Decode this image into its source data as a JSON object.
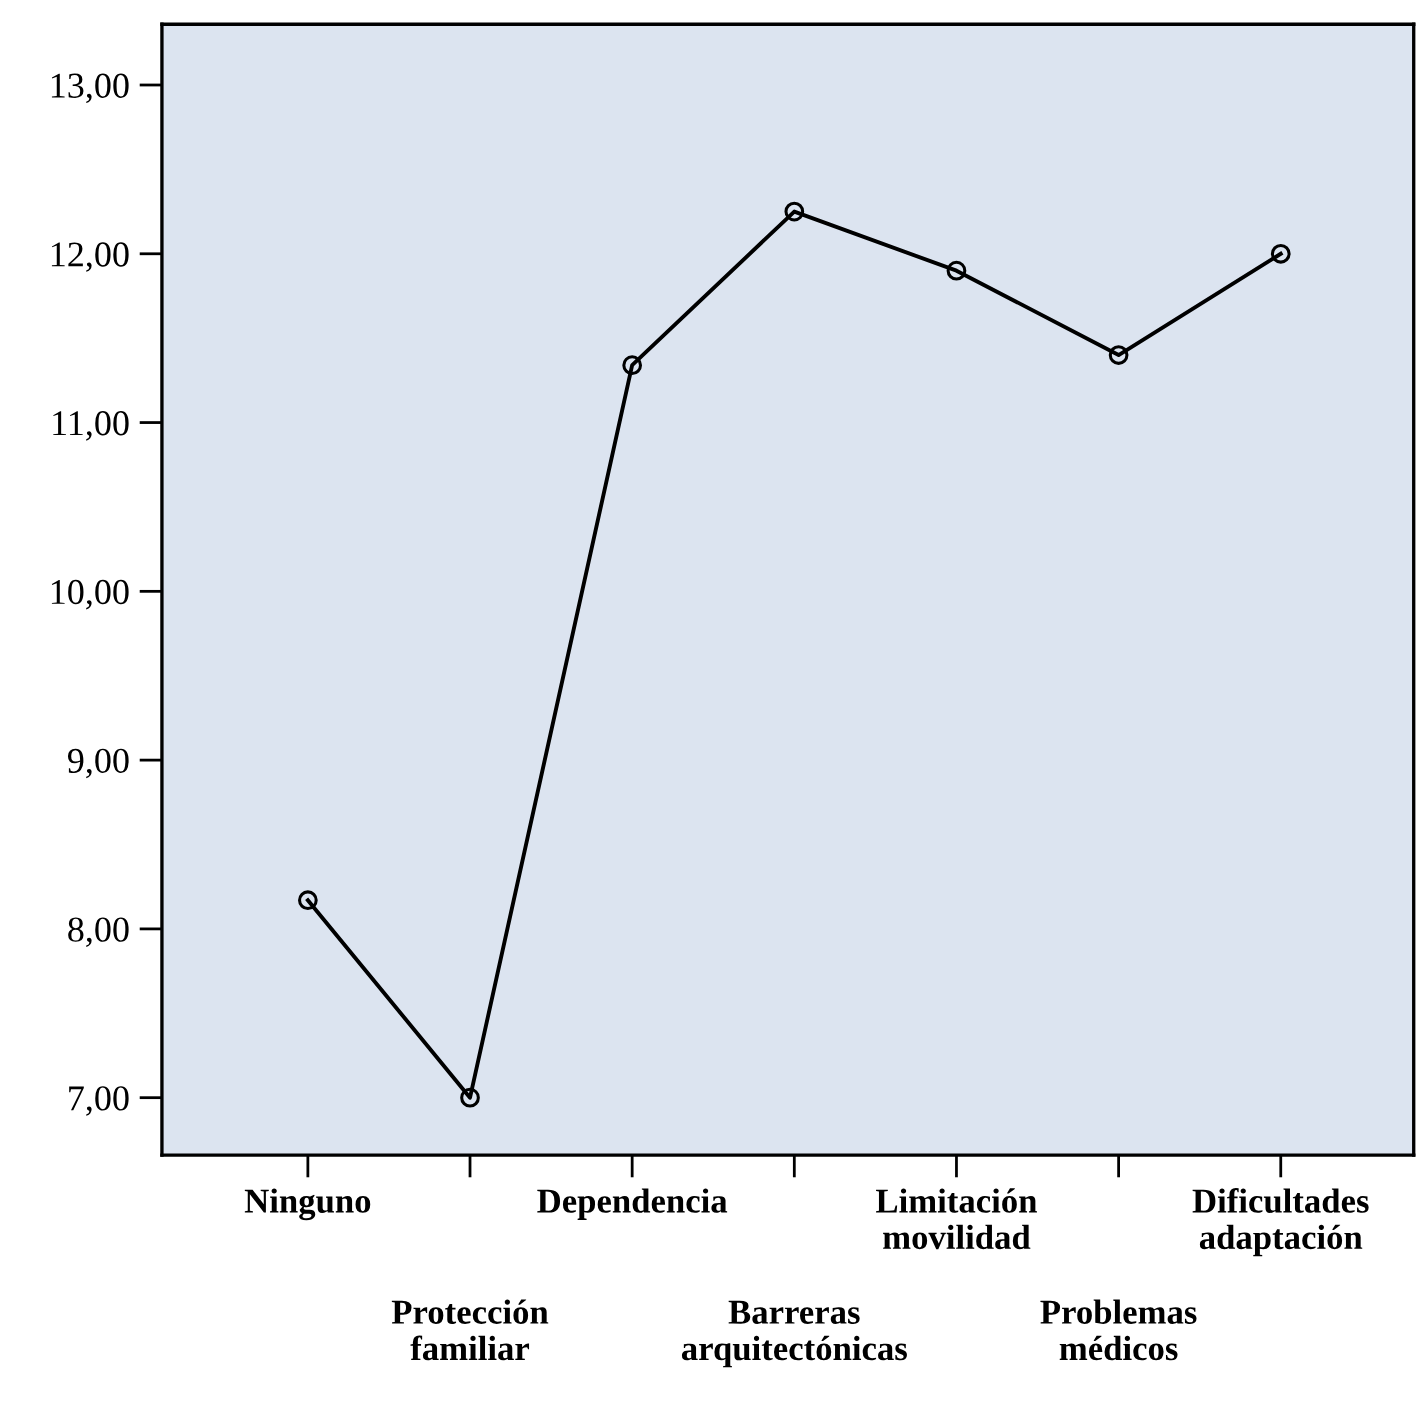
{
  "chart_data": {
    "type": "line",
    "categories": [
      "Ninguno",
      "Protección familiar",
      "Dependencia",
      "Barreras arquitectónicas",
      "Limitación movilidad",
      "Problemas médicos",
      "Dificultades adaptación"
    ],
    "series": [
      {
        "color": "#000000",
        "values": [
          8.17,
          7.0,
          11.34,
          12.25,
          11.9,
          11.4,
          12.0
        ]
      }
    ],
    "ylim": [
      6.66,
      13.36
    ],
    "yticks": [
      {
        "value": 7,
        "label": "7,00"
      },
      {
        "value": 8,
        "label": "8,00"
      },
      {
        "value": 9,
        "label": "9,00"
      },
      {
        "value": 10,
        "label": "10,00"
      },
      {
        "value": 11,
        "label": "11,00"
      },
      {
        "value": 12,
        "label": "12,00"
      },
      {
        "value": 13,
        "label": "13,00"
      }
    ],
    "marker": "circle",
    "line_style": "solid",
    "grid": false,
    "legend": false
  }
}
